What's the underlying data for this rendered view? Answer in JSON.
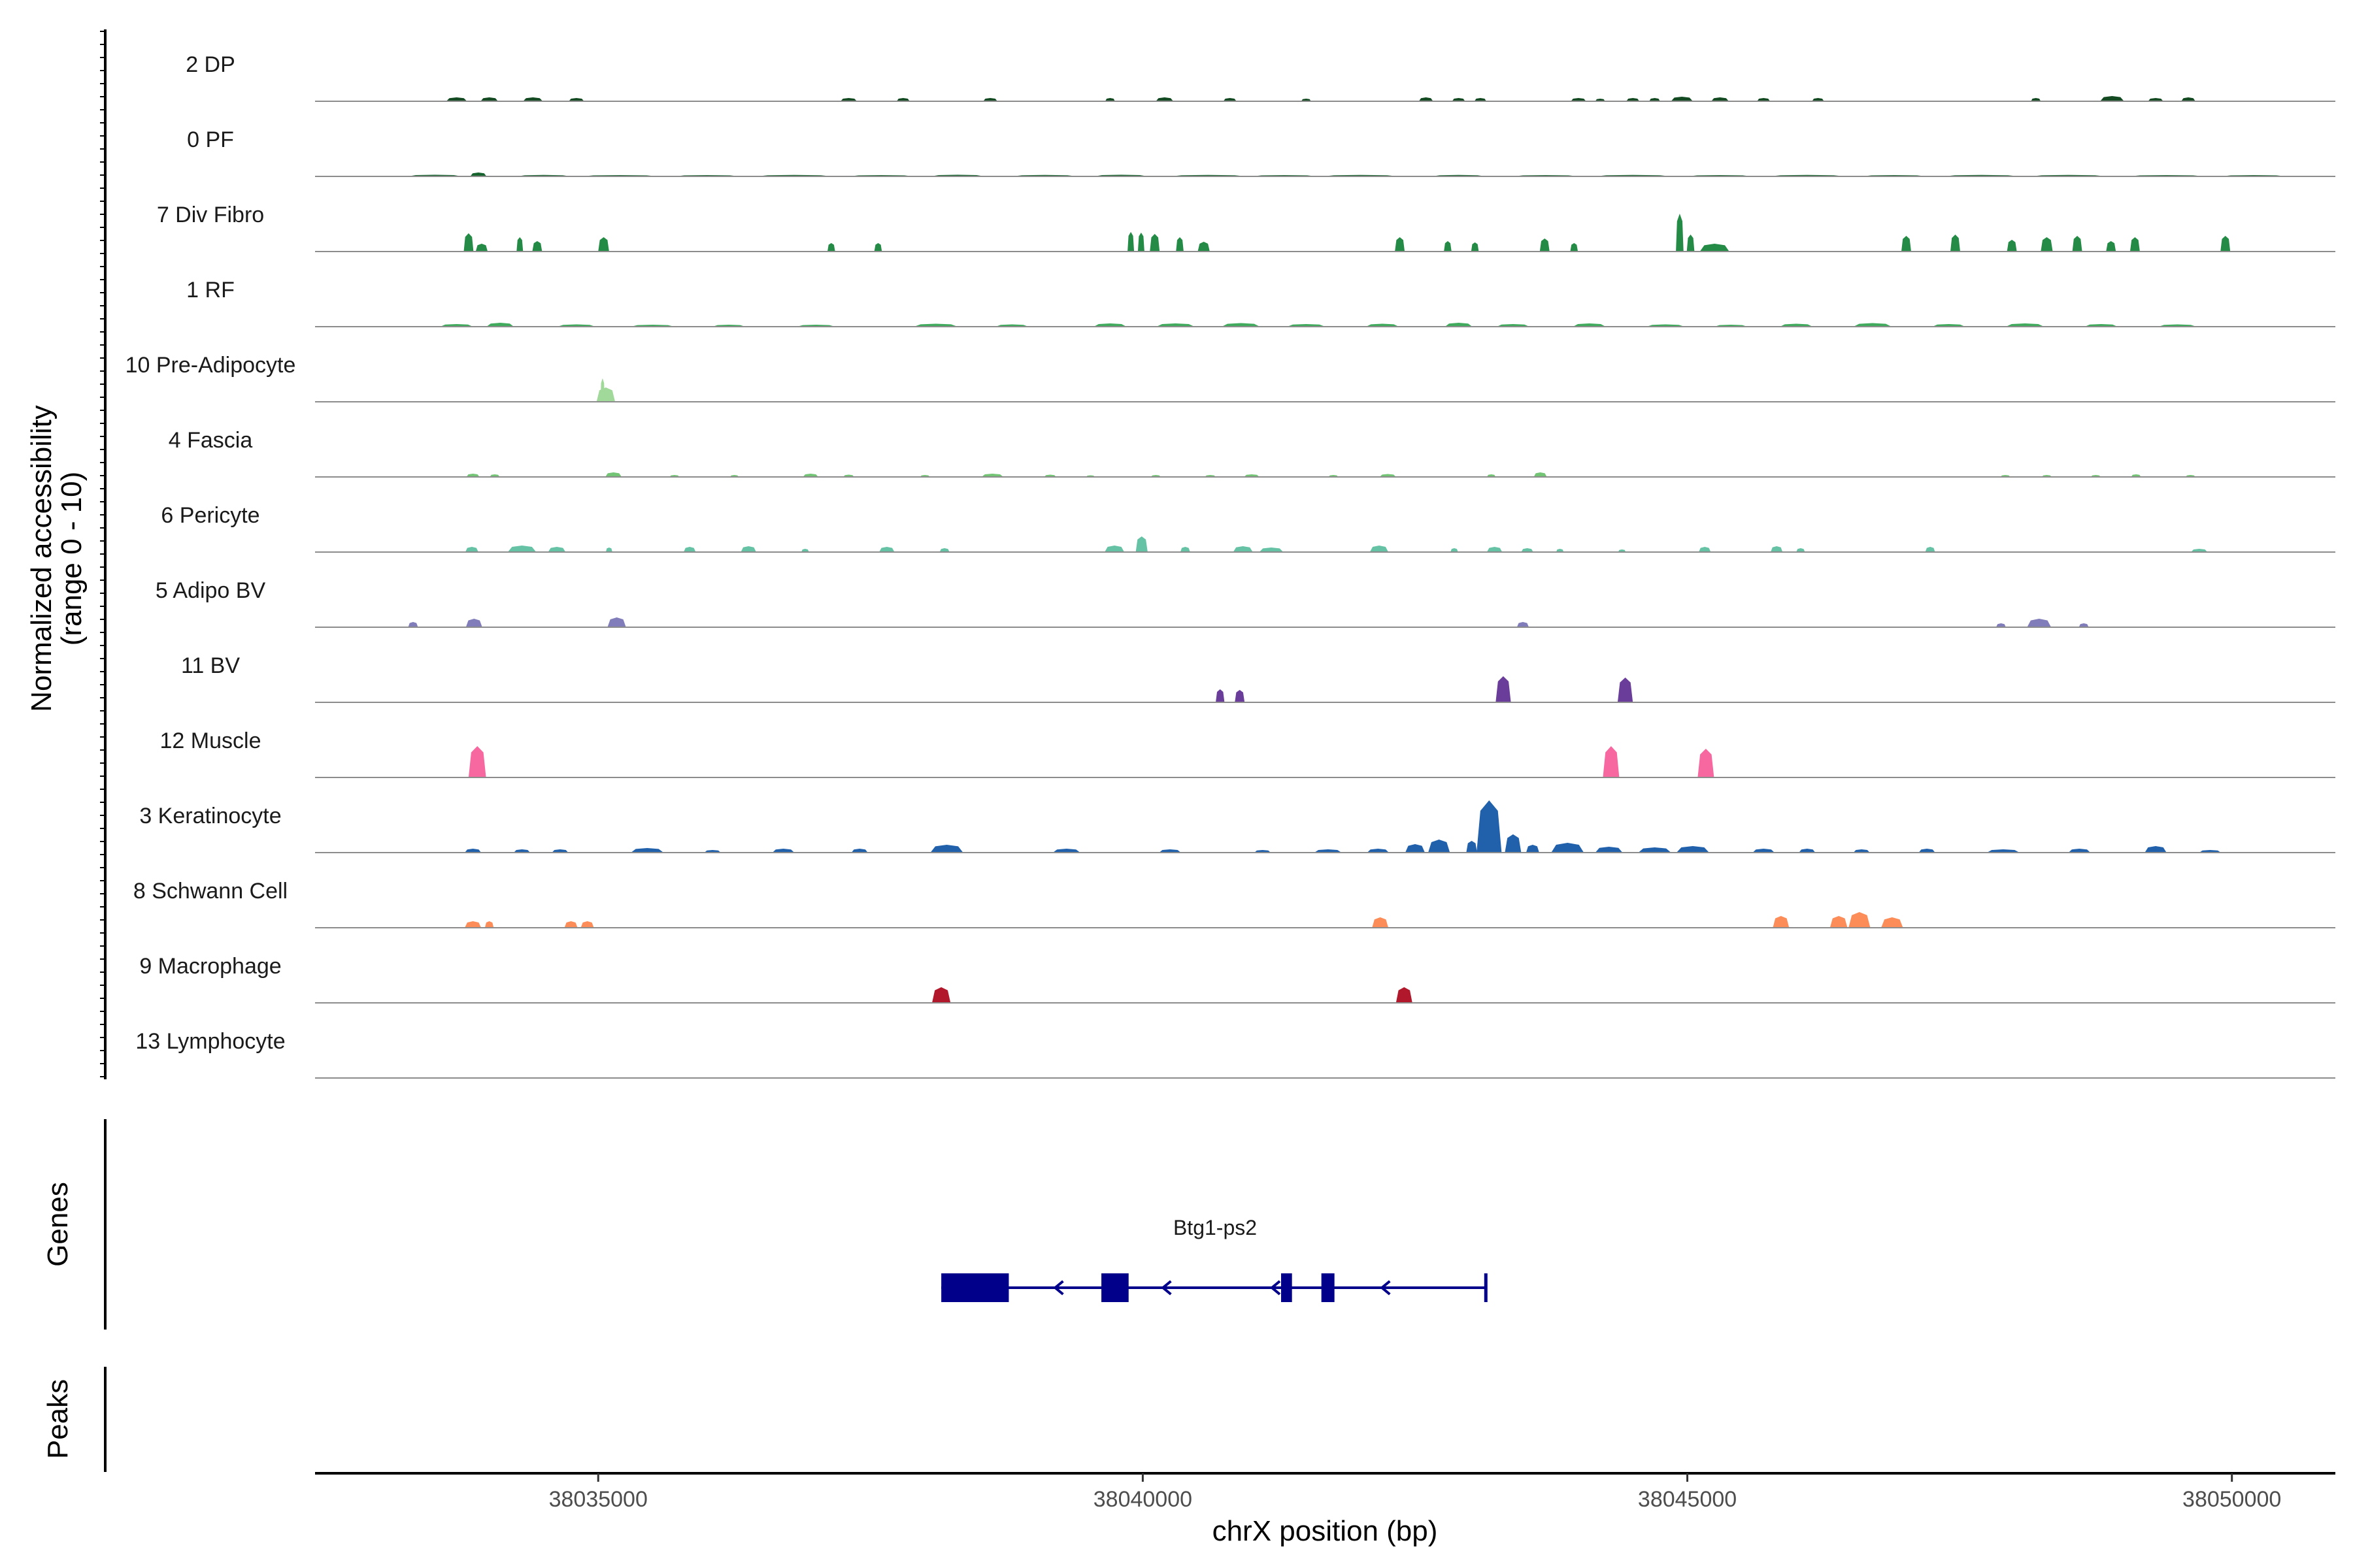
{
  "chart_data": {
    "type": "area",
    "title": "",
    "ylabel_line1": "Normalized accessibility",
    "ylabel_line2": "(range 0 - 10)",
    "xlabel": "chrX position (bp)",
    "xlim": [
      38032400,
      38050950
    ],
    "ylim": [
      0,
      10
    ],
    "x_ticks": [
      38035000,
      38040000,
      38045000,
      38050000
    ],
    "x_tick_labels": [
      "38035000",
      "38040000",
      "38045000",
      "38050000"
    ],
    "tracks": [
      {
        "name": "2 DP",
        "color": "#134a22",
        "peaks": [
          [
            38033700,
            190,
            0.6
          ],
          [
            38034000,
            160,
            0.6
          ],
          [
            38034400,
            180,
            0.6
          ],
          [
            38034800,
            140,
            0.5
          ],
          [
            38037300,
            150,
            0.5
          ],
          [
            38037800,
            120,
            0.5
          ],
          [
            38038600,
            130,
            0.5
          ],
          [
            38039700,
            90,
            0.5
          ],
          [
            38040200,
            160,
            0.6
          ],
          [
            38040800,
            120,
            0.5
          ],
          [
            38041500,
            90,
            0.4
          ],
          [
            38042600,
            130,
            0.6
          ],
          [
            38042900,
            120,
            0.5
          ],
          [
            38043100,
            110,
            0.5
          ],
          [
            38044000,
            140,
            0.5
          ],
          [
            38044200,
            90,
            0.4
          ],
          [
            38044500,
            120,
            0.5
          ],
          [
            38044700,
            100,
            0.5
          ],
          [
            38044950,
            200,
            0.7
          ],
          [
            38045300,
            160,
            0.6
          ],
          [
            38045700,
            120,
            0.5
          ],
          [
            38046200,
            110,
            0.5
          ],
          [
            38048200,
            90,
            0.5
          ],
          [
            38048900,
            220,
            0.8
          ],
          [
            38049300,
            140,
            0.5
          ],
          [
            38049600,
            130,
            0.6
          ]
        ]
      },
      {
        "name": "0 PF",
        "color": "#17632e",
        "peaks": [
          [
            38033500,
            500,
            0.25
          ],
          [
            38033900,
            150,
            0.6
          ],
          [
            38034500,
            500,
            0.22
          ],
          [
            38035200,
            700,
            0.2
          ],
          [
            38036000,
            600,
            0.2
          ],
          [
            38036800,
            700,
            0.22
          ],
          [
            38037600,
            600,
            0.2
          ],
          [
            38038300,
            500,
            0.25
          ],
          [
            38039100,
            600,
            0.22
          ],
          [
            38039800,
            500,
            0.25
          ],
          [
            38040600,
            700,
            0.22
          ],
          [
            38041300,
            600,
            0.2
          ],
          [
            38042000,
            700,
            0.22
          ],
          [
            38042900,
            500,
            0.22
          ],
          [
            38043700,
            600,
            0.2
          ],
          [
            38044500,
            700,
            0.22
          ],
          [
            38045300,
            600,
            0.2
          ],
          [
            38046100,
            700,
            0.22
          ],
          [
            38046900,
            600,
            0.2
          ],
          [
            38047700,
            700,
            0.22
          ],
          [
            38048500,
            700,
            0.22
          ],
          [
            38049400,
            700,
            0.2
          ],
          [
            38050200,
            600,
            0.2
          ]
        ]
      },
      {
        "name": "7 Div Fibro",
        "color": "#238b45",
        "peaks": [
          [
            38033810,
            90,
            2.8
          ],
          [
            38033930,
            110,
            1.2
          ],
          [
            38034280,
            60,
            2.2
          ],
          [
            38034440,
            90,
            1.6
          ],
          [
            38035050,
            100,
            2.2
          ],
          [
            38037140,
            70,
            1.3
          ],
          [
            38037570,
            70,
            1.3
          ],
          [
            38039890,
            60,
            3.0
          ],
          [
            38039985,
            60,
            2.9
          ],
          [
            38040110,
            90,
            2.7
          ],
          [
            38040340,
            70,
            2.2
          ],
          [
            38040560,
            110,
            1.5
          ],
          [
            38042360,
            90,
            2.2
          ],
          [
            38042800,
            70,
            1.6
          ],
          [
            38043050,
            70,
            1.4
          ],
          [
            38043690,
            90,
            2.0
          ],
          [
            38043960,
            70,
            1.3
          ],
          [
            38044930,
            70,
            5.8
          ],
          [
            38045030,
            70,
            2.6
          ],
          [
            38045250,
            270,
            1.2
          ],
          [
            38047010,
            90,
            2.4
          ],
          [
            38047460,
            90,
            2.6
          ],
          [
            38047980,
            90,
            1.8
          ],
          [
            38048300,
            110,
            2.2
          ],
          [
            38048580,
            90,
            2.4
          ],
          [
            38048890,
            90,
            1.6
          ],
          [
            38049110,
            90,
            2.2
          ],
          [
            38049940,
            90,
            2.4
          ]
        ]
      },
      {
        "name": "1 RF",
        "color": "#41ab5d",
        "peaks": [
          [
            38033700,
            300,
            0.4
          ],
          [
            38034100,
            250,
            0.6
          ],
          [
            38034800,
            350,
            0.35
          ],
          [
            38035500,
            400,
            0.3
          ],
          [
            38036200,
            300,
            0.3
          ],
          [
            38037000,
            350,
            0.3
          ],
          [
            38038100,
            400,
            0.45
          ],
          [
            38038800,
            300,
            0.35
          ],
          [
            38039700,
            300,
            0.5
          ],
          [
            38040300,
            350,
            0.5
          ],
          [
            38040900,
            350,
            0.55
          ],
          [
            38041500,
            350,
            0.4
          ],
          [
            38042200,
            300,
            0.45
          ],
          [
            38042900,
            250,
            0.6
          ],
          [
            38043400,
            300,
            0.4
          ],
          [
            38044100,
            300,
            0.5
          ],
          [
            38044800,
            350,
            0.35
          ],
          [
            38045400,
            300,
            0.3
          ],
          [
            38046000,
            300,
            0.45
          ],
          [
            38046700,
            350,
            0.55
          ],
          [
            38047400,
            300,
            0.4
          ],
          [
            38048100,
            350,
            0.5
          ],
          [
            38048800,
            300,
            0.4
          ],
          [
            38049500,
            350,
            0.35
          ]
        ]
      },
      {
        "name": "10 Pre-Adipocyte",
        "color": "#a1d99b",
        "peaks": [
          [
            38035070,
            170,
            2.2
          ],
          [
            38035040,
            40,
            3.6
          ]
        ]
      },
      {
        "name": "4 Fascia",
        "color": "#74c476",
        "peaks": [
          [
            38033850,
            120,
            0.5
          ],
          [
            38034050,
            90,
            0.4
          ],
          [
            38035140,
            150,
            0.7
          ],
          [
            38035700,
            90,
            0.3
          ],
          [
            38036250,
            80,
            0.3
          ],
          [
            38036950,
            140,
            0.5
          ],
          [
            38037300,
            100,
            0.35
          ],
          [
            38038000,
            90,
            0.3
          ],
          [
            38038620,
            200,
            0.5
          ],
          [
            38039150,
            110,
            0.35
          ],
          [
            38039520,
            80,
            0.25
          ],
          [
            38040120,
            90,
            0.3
          ],
          [
            38040620,
            100,
            0.3
          ],
          [
            38041000,
            140,
            0.4
          ],
          [
            38041750,
            90,
            0.3
          ],
          [
            38042250,
            150,
            0.45
          ],
          [
            38043200,
            80,
            0.4
          ],
          [
            38043650,
            120,
            0.7
          ],
          [
            38047920,
            90,
            0.3
          ],
          [
            38048300,
            90,
            0.3
          ],
          [
            38048750,
            90,
            0.3
          ],
          [
            38049120,
            90,
            0.4
          ],
          [
            38049620,
            90,
            0.3
          ]
        ]
      },
      {
        "name": "6 Pericyte",
        "color": "#66c2a4",
        "peaks": [
          [
            38033840,
            120,
            0.8
          ],
          [
            38034300,
            260,
            1.0
          ],
          [
            38034620,
            160,
            0.8
          ],
          [
            38035100,
            60,
            0.7
          ],
          [
            38035840,
            110,
            0.8
          ],
          [
            38036380,
            140,
            0.9
          ],
          [
            38036900,
            70,
            0.5
          ],
          [
            38037650,
            140,
            0.8
          ],
          [
            38038180,
            90,
            0.6
          ],
          [
            38039740,
            180,
            1.0
          ],
          [
            38039990,
            110,
            2.4
          ],
          [
            38040390,
            90,
            0.8
          ],
          [
            38040920,
            180,
            0.9
          ],
          [
            38041180,
            220,
            0.7
          ],
          [
            38042170,
            170,
            1.0
          ],
          [
            38042860,
            70,
            0.6
          ],
          [
            38043230,
            140,
            0.8
          ],
          [
            38043530,
            110,
            0.6
          ],
          [
            38043830,
            70,
            0.5
          ],
          [
            38044400,
            70,
            0.4
          ],
          [
            38045160,
            110,
            0.8
          ],
          [
            38045820,
            110,
            0.9
          ],
          [
            38046040,
            80,
            0.6
          ],
          [
            38047230,
            90,
            0.8
          ],
          [
            38049700,
            150,
            0.5
          ]
        ]
      },
      {
        "name": "5 Adipo BV",
        "color": "#807dba",
        "peaks": [
          [
            38033300,
            90,
            0.8
          ],
          [
            38033860,
            150,
            1.3
          ],
          [
            38035170,
            170,
            1.5
          ],
          [
            38043490,
            110,
            0.8
          ],
          [
            38047880,
            90,
            0.6
          ],
          [
            38048230,
            220,
            1.3
          ],
          [
            38048640,
            90,
            0.6
          ]
        ]
      },
      {
        "name": "11 BV",
        "color": "#6a3d9a",
        "peaks": [
          [
            38040710,
            80,
            2.0
          ],
          [
            38040890,
            90,
            1.9
          ],
          [
            38043310,
            140,
            4.0
          ],
          [
            38044430,
            140,
            3.8
          ]
        ]
      },
      {
        "name": "12 Muscle",
        "color": "#f768a1",
        "peaks": [
          [
            38033890,
            160,
            4.8
          ],
          [
            38044300,
            150,
            4.8
          ],
          [
            38045170,
            150,
            4.4
          ]
        ]
      },
      {
        "name": "3 Keratinocyte",
        "color": "#2161ac",
        "peaks": [
          [
            38033850,
            150,
            0.6
          ],
          [
            38034300,
            150,
            0.5
          ],
          [
            38034650,
            150,
            0.5
          ],
          [
            38035450,
            300,
            0.7
          ],
          [
            38036050,
            150,
            0.4
          ],
          [
            38036700,
            200,
            0.6
          ],
          [
            38037400,
            150,
            0.6
          ],
          [
            38038200,
            300,
            1.2
          ],
          [
            38039300,
            250,
            0.6
          ],
          [
            38040250,
            200,
            0.5
          ],
          [
            38041100,
            150,
            0.4
          ],
          [
            38041700,
            250,
            0.5
          ],
          [
            38042160,
            200,
            0.6
          ],
          [
            38042500,
            180,
            1.3
          ],
          [
            38042720,
            200,
            2.0
          ],
          [
            38043020,
            100,
            1.8
          ],
          [
            38043180,
            230,
            8.0
          ],
          [
            38043400,
            150,
            2.8
          ],
          [
            38043580,
            120,
            1.2
          ],
          [
            38043900,
            300,
            1.5
          ],
          [
            38044280,
            250,
            0.9
          ],
          [
            38044700,
            300,
            0.8
          ],
          [
            38045050,
            300,
            1.0
          ],
          [
            38045700,
            200,
            0.6
          ],
          [
            38046100,
            150,
            0.6
          ],
          [
            38046600,
            150,
            0.5
          ],
          [
            38047200,
            150,
            0.6
          ],
          [
            38047900,
            300,
            0.5
          ],
          [
            38048600,
            200,
            0.6
          ],
          [
            38049300,
            200,
            1.0
          ],
          [
            38049800,
            200,
            0.4
          ]
        ]
      },
      {
        "name": "8 Schwann Cell",
        "color": "#fc8d59",
        "peaks": [
          [
            38033850,
            150,
            1.0
          ],
          [
            38034000,
            80,
            1.0
          ],
          [
            38034750,
            120,
            1.0
          ],
          [
            38034900,
            120,
            1.0
          ],
          [
            38042180,
            150,
            1.6
          ],
          [
            38045860,
            150,
            1.8
          ],
          [
            38046390,
            160,
            1.8
          ],
          [
            38046580,
            200,
            2.4
          ],
          [
            38046880,
            200,
            1.6
          ]
        ]
      },
      {
        "name": "9 Macrophage",
        "color": "#b2182b",
        "peaks": [
          [
            38038150,
            170,
            2.4
          ],
          [
            38042400,
            150,
            2.4
          ]
        ]
      },
      {
        "name": "13 Lymphocyte",
        "color": "#555555",
        "peaks": []
      }
    ],
    "genes_label": "Genes",
    "peaks_label": "Peaks",
    "gene": {
      "name": "Btg1-ps2",
      "start": 38038150,
      "end": 38043150,
      "strand": "-",
      "color": "#00008b",
      "exons": [
        [
          38038150,
          38038770
        ],
        [
          38039620,
          38039870
        ],
        [
          38041270,
          38041370
        ],
        [
          38041640,
          38041760
        ]
      ],
      "arrows": [
        38039220,
        38040210,
        38041210,
        38042220
      ]
    }
  }
}
